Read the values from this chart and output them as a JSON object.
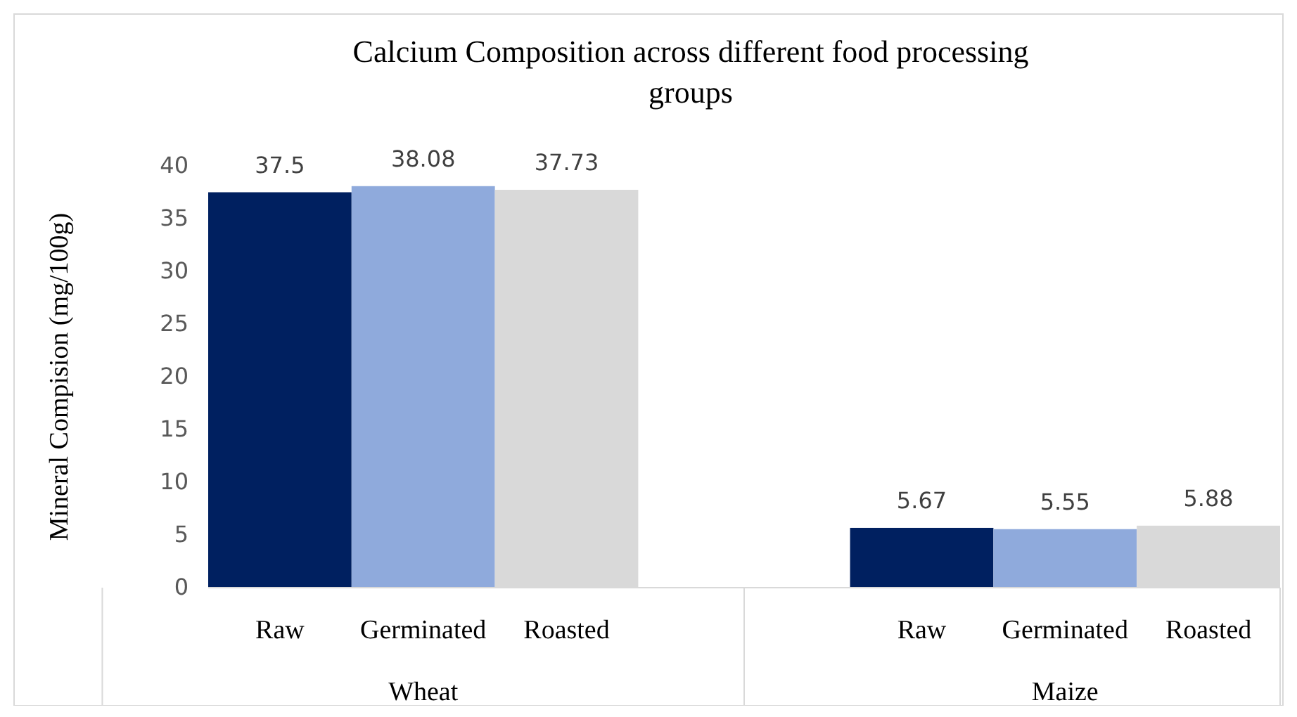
{
  "chart_data": {
    "type": "bar",
    "title": "Calcium Composition across different food processing groups",
    "ylabel": "Mineral Compision (mg/100g)",
    "categories": [
      "Wheat",
      "Maize"
    ],
    "series": [
      {
        "name": "Raw",
        "color": "#002060",
        "values": [
          37.5,
          5.67
        ]
      },
      {
        "name": "Germinated",
        "color": "#8faadc",
        "values": [
          38.08,
          5.55
        ]
      },
      {
        "name": "Roasted",
        "color": "#d9d9d9",
        "values": [
          37.73,
          5.88
        ]
      }
    ],
    "ylim": [
      0,
      40
    ],
    "yticks": [
      0,
      5,
      10,
      15,
      20,
      25,
      30,
      35,
      40
    ],
    "data_labels": true
  }
}
